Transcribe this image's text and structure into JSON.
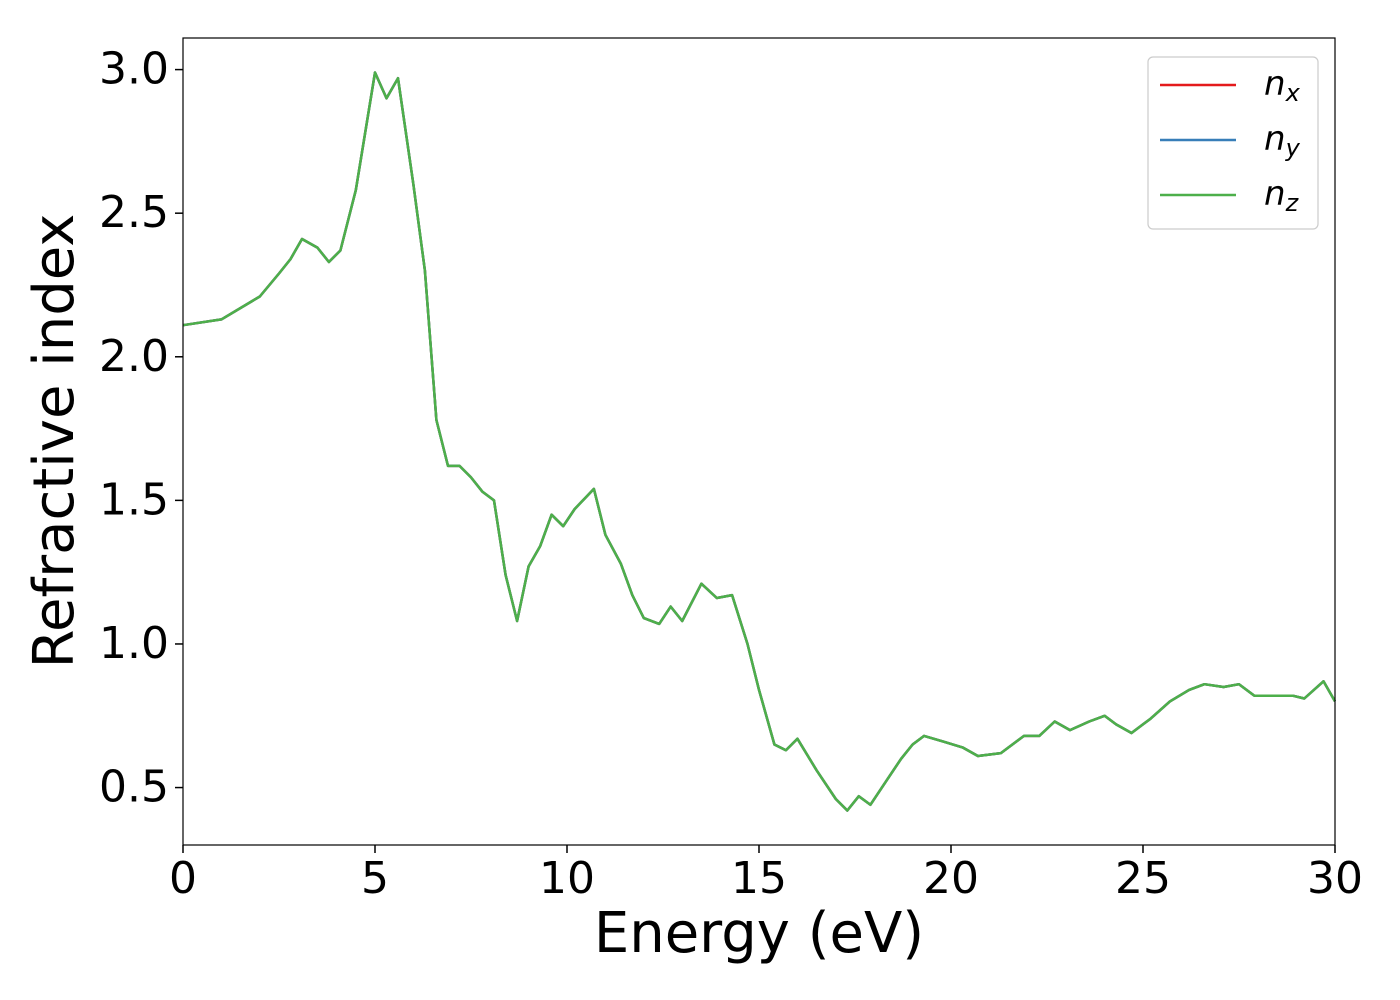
{
  "chart_data": {
    "type": "line",
    "xlabel": "Energy (eV)",
    "ylabel": "Refractive index",
    "x": [
      0,
      1,
      2,
      2.5,
      2.8,
      3.1,
      3.5,
      3.8,
      4.1,
      4.5,
      5.0,
      5.3,
      5.6,
      6.0,
      6.3,
      6.6,
      6.9,
      7.2,
      7.5,
      7.8,
      8.1,
      8.4,
      8.7,
      9.0,
      9.3,
      9.6,
      9.9,
      10.2,
      10.7,
      11.0,
      11.4,
      11.7,
      12.0,
      12.4,
      12.7,
      13.0,
      13.5,
      13.9,
      14.3,
      14.7,
      15.0,
      15.4,
      15.7,
      16.0,
      16.5,
      17.0,
      17.3,
      17.6,
      17.9,
      18.3,
      18.7,
      19.0,
      19.3,
      19.8,
      20.3,
      20.7,
      21.3,
      21.9,
      22.3,
      22.7,
      23.1,
      23.6,
      24.0,
      24.3,
      24.7,
      25.2,
      25.7,
      26.2,
      26.6,
      27.1,
      27.5,
      27.9,
      28.5,
      28.9,
      29.2,
      29.7,
      30.0
    ],
    "series": [
      {
        "name": "nx",
        "color": "#e41a1c",
        "values": [
          2.11,
          2.13,
          2.21,
          2.29,
          2.34,
          2.41,
          2.38,
          2.33,
          2.37,
          2.58,
          2.99,
          2.9,
          2.97,
          2.6,
          2.3,
          1.78,
          1.62,
          1.62,
          1.58,
          1.53,
          1.5,
          1.24,
          1.08,
          1.27,
          1.34,
          1.45,
          1.41,
          1.47,
          1.54,
          1.38,
          1.28,
          1.17,
          1.09,
          1.07,
          1.13,
          1.08,
          1.21,
          1.16,
          1.17,
          1.0,
          0.84,
          0.65,
          0.63,
          0.67,
          0.56,
          0.46,
          0.42,
          0.47,
          0.44,
          0.52,
          0.6,
          0.65,
          0.68,
          0.66,
          0.64,
          0.61,
          0.62,
          0.68,
          0.68,
          0.73,
          0.7,
          0.73,
          0.75,
          0.72,
          0.69,
          0.74,
          0.8,
          0.84,
          0.86,
          0.85,
          0.86,
          0.82,
          0.82,
          0.82,
          0.81,
          0.87,
          0.8
        ]
      },
      {
        "name": "ny",
        "color": "#377eb8",
        "values": [
          2.11,
          2.13,
          2.21,
          2.29,
          2.34,
          2.41,
          2.38,
          2.33,
          2.37,
          2.58,
          2.99,
          2.9,
          2.97,
          2.6,
          2.3,
          1.78,
          1.62,
          1.62,
          1.58,
          1.53,
          1.5,
          1.24,
          1.08,
          1.27,
          1.34,
          1.45,
          1.41,
          1.47,
          1.54,
          1.38,
          1.28,
          1.17,
          1.09,
          1.07,
          1.13,
          1.08,
          1.21,
          1.16,
          1.17,
          1.0,
          0.84,
          0.65,
          0.63,
          0.67,
          0.56,
          0.46,
          0.42,
          0.47,
          0.44,
          0.52,
          0.6,
          0.65,
          0.68,
          0.66,
          0.64,
          0.61,
          0.62,
          0.68,
          0.68,
          0.73,
          0.7,
          0.73,
          0.75,
          0.72,
          0.69,
          0.74,
          0.8,
          0.84,
          0.86,
          0.85,
          0.86,
          0.82,
          0.82,
          0.82,
          0.81,
          0.87,
          0.8
        ]
      },
      {
        "name": "nz",
        "color": "#4daf4a",
        "values": [
          2.11,
          2.13,
          2.21,
          2.29,
          2.34,
          2.41,
          2.38,
          2.33,
          2.37,
          2.58,
          2.99,
          2.9,
          2.97,
          2.6,
          2.3,
          1.78,
          1.62,
          1.62,
          1.58,
          1.53,
          1.5,
          1.24,
          1.08,
          1.27,
          1.34,
          1.45,
          1.41,
          1.47,
          1.54,
          1.38,
          1.28,
          1.17,
          1.09,
          1.07,
          1.13,
          1.08,
          1.21,
          1.16,
          1.17,
          1.0,
          0.84,
          0.65,
          0.63,
          0.67,
          0.56,
          0.46,
          0.42,
          0.47,
          0.44,
          0.52,
          0.6,
          0.65,
          0.68,
          0.66,
          0.64,
          0.61,
          0.62,
          0.68,
          0.68,
          0.73,
          0.7,
          0.73,
          0.75,
          0.72,
          0.69,
          0.74,
          0.8,
          0.84,
          0.86,
          0.85,
          0.86,
          0.82,
          0.82,
          0.82,
          0.81,
          0.87,
          0.8
        ]
      }
    ],
    "xlim": [
      0,
      30
    ],
    "xticks": [
      0,
      5,
      10,
      15,
      20,
      25,
      30
    ],
    "ylim": [
      0.3,
      3.11
    ],
    "yticks": [
      0.5,
      {
        "value": 1.0,
        "label": "1.0"
      },
      1.5,
      {
        "value": 2.0,
        "label": "2.0"
      },
      2.5,
      {
        "value": 3.0,
        "label": "3.0"
      }
    ],
    "grid": false,
    "legend": "upper right"
  }
}
